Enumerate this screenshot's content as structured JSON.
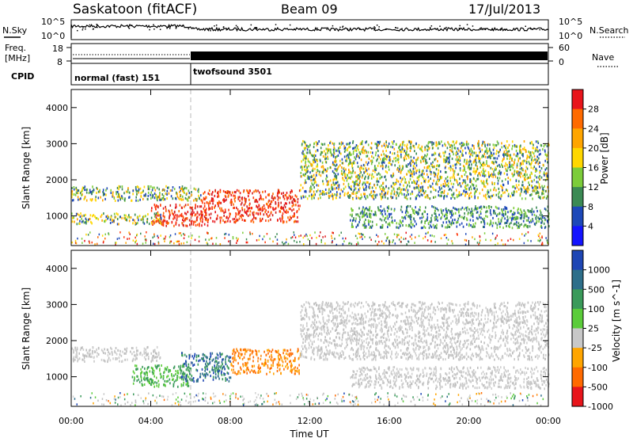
{
  "header": {
    "station": "Saskatoon (fitACF)",
    "beam": "Beam 09",
    "date": "17/Jul/2013"
  },
  "noise_panel": {
    "left_label": "N.Sky",
    "right_label": "N.Search",
    "left_ticks": [
      "10^5",
      "10^0"
    ],
    "right_ticks": [
      "10^5",
      "10^0"
    ]
  },
  "freq_panel": {
    "left_label_1": "Freq.",
    "left_label_2": "[MHz]",
    "left_ticks": [
      "18",
      "8"
    ],
    "right_label": "Nave",
    "right_ticks": [
      "60",
      "0"
    ]
  },
  "cpid": {
    "label": "CPID",
    "segments": [
      {
        "name": "normal (fast) 151",
        "start_hour": 0,
        "end_hour": 6
      },
      {
        "name": "twofsound 3501",
        "start_hour": 6,
        "end_hour": 24
      }
    ]
  },
  "power_panel": {
    "ylabel": "Slant Range [km]",
    "colorbar_label": "Power [dB]",
    "colorbar_ticks": [
      "28",
      "24",
      "20",
      "16",
      "12",
      "8",
      "4"
    ],
    "colorbar_colors": [
      "#e8151b",
      "#ff6a00",
      "#ffa500",
      "#ffd700",
      "#7ccc3a",
      "#3b8a54",
      "#1d48b8",
      "#1414ff"
    ]
  },
  "velocity_panel": {
    "ylabel": "Slant Range [km]",
    "colorbar_label": "Velocity [m s^-1]",
    "colorbar_ticks": [
      "1000",
      "500",
      "100",
      "25",
      "-25",
      "-100",
      "-500",
      "-1000"
    ],
    "colorbar_colors": [
      "#1e46b4",
      "#2e6f8a",
      "#3a9a5a",
      "#5bcc3a",
      "#c8c8c8",
      "#ffa500",
      "#ff6a00",
      "#e8151b"
    ]
  },
  "y_ticks": [
    "4000",
    "3000",
    "2000",
    "1000"
  ],
  "x_axis": {
    "label": "Time UT",
    "ticks": [
      "00:00",
      "04:00",
      "08:00",
      "12:00",
      "16:00",
      "20:00",
      "00:00"
    ]
  },
  "chart_data": {
    "type": "heatmap",
    "x_range_hours": [
      0,
      24
    ],
    "y_range_km": [
      180,
      4500
    ],
    "power_regions": [
      {
        "t0": 0.0,
        "t1": 6.5,
        "r0": 1450,
        "r1": 1850,
        "level": "mid"
      },
      {
        "t0": 4.0,
        "t1": 7.0,
        "r0": 750,
        "r1": 1350,
        "level": "high"
      },
      {
        "t0": 6.5,
        "t1": 11.5,
        "r0": 850,
        "r1": 1750,
        "level": "high"
      },
      {
        "t0": 0.0,
        "t1": 4.5,
        "r0": 800,
        "r1": 1100,
        "level": "mid"
      },
      {
        "t0": 11.5,
        "t1": 24.0,
        "r0": 1500,
        "r1": 3100,
        "level": "mid"
      },
      {
        "t0": 14.0,
        "t1": 24.0,
        "r0": 700,
        "r1": 1300,
        "level": "low"
      }
    ],
    "velocity_regions": [
      {
        "t0": 0.0,
        "t1": 4.5,
        "r0": 1450,
        "r1": 1850,
        "class": "25"
      },
      {
        "t0": 3.0,
        "t1": 6.0,
        "r0": 750,
        "r1": 1350,
        "class": "100"
      },
      {
        "t0": 5.5,
        "t1": 8.0,
        "r0": 900,
        "r1": 1700,
        "class": "500"
      },
      {
        "t0": 8.0,
        "t1": 11.5,
        "r0": 1100,
        "r1": 1800,
        "class": "-500"
      },
      {
        "t0": 11.5,
        "t1": 24.0,
        "r0": 1500,
        "r1": 3100,
        "class": "25"
      },
      {
        "t0": 14.0,
        "t1": 24.0,
        "r0": 700,
        "r1": 1300,
        "class": "25"
      }
    ]
  }
}
